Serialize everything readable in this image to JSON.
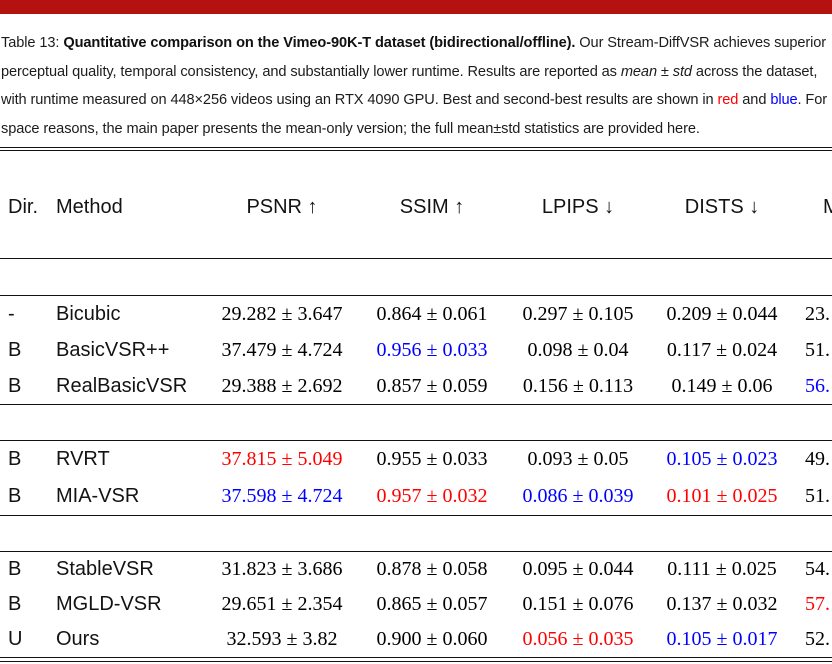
{
  "colors": {
    "accent_bar": "#b31210",
    "best": "#ff0000",
    "second": "#0000ff"
  },
  "caption": {
    "line1": {
      "pre": "Table 13:",
      "bold": "Quantitative comparison on the Vimeo-90K-T dataset (bidirectional/offline).",
      "post": "Our Stream-DiffVSR achieves superior"
    },
    "line2": {
      "pre": "perceptual quality, temporal consistency, and substantially lower runtime. Results are reported as",
      "italic": "mean ± std",
      "post": "across the dataset,"
    },
    "line3": {
      "pre": "with runtime measured on 448×256 videos using an RTX 4090 GPU. Best and second-best results are shown in",
      "red_word": "red",
      "mid": "and",
      "blue_word": "blue",
      "post": ". For"
    },
    "line4": {
      "text": "space reasons, the main paper presents the mean-only version; the full mean±std statistics are provided here."
    }
  },
  "table": {
    "headers": [
      "Dir.",
      "Method",
      "PSNR ↑",
      "SSIM ↑",
      "LPIPS ↓",
      "DISTS ↓",
      "M"
    ],
    "groups": [
      {
        "rows": [
          {
            "dir": "-",
            "method": "Bicubic",
            "values": [
              {
                "v": "29.282 ± 3.647"
              },
              {
                "v": "0.864 ± 0.061"
              },
              {
                "v": "0.297 ± 0.105"
              },
              {
                "v": "0.209 ± 0.044"
              },
              {
                "v": "23."
              }
            ]
          },
          {
            "dir": "B",
            "method": "BasicVSR++",
            "values": [
              {
                "v": "37.479 ± 4.724"
              },
              {
                "v": "0.956 ± 0.033",
                "c": "second"
              },
              {
                "v": "0.098 ± 0.04"
              },
              {
                "v": "0.117 ± 0.024"
              },
              {
                "v": "51."
              }
            ]
          },
          {
            "dir": "B",
            "method": "RealBasicVSR",
            "values": [
              {
                "v": "29.388 ± 2.692"
              },
              {
                "v": "0.857 ± 0.059"
              },
              {
                "v": "0.156 ± 0.113"
              },
              {
                "v": "0.149 ± 0.06"
              },
              {
                "v": "56.",
                "c": "second"
              }
            ]
          }
        ]
      },
      {
        "rows": [
          {
            "dir": "B",
            "method": "RVRT",
            "values": [
              {
                "v": "37.815 ± 5.049",
                "c": "best"
              },
              {
                "v": "0.955 ± 0.033"
              },
              {
                "v": "0.093 ± 0.05"
              },
              {
                "v": "0.105 ± 0.023",
                "c": "second"
              },
              {
                "v": "49."
              }
            ]
          },
          {
            "dir": "B",
            "method": "MIA-VSR",
            "values": [
              {
                "v": "37.598 ± 4.724",
                "c": "second"
              },
              {
                "v": "0.957 ± 0.032",
                "c": "best"
              },
              {
                "v": "0.086 ± 0.039",
                "c": "second"
              },
              {
                "v": "0.101 ± 0.025",
                "c": "best"
              },
              {
                "v": "51."
              }
            ]
          }
        ]
      },
      {
        "rows": [
          {
            "dir": "B",
            "method": "StableVSR",
            "values": [
              {
                "v": "31.823 ± 3.686"
              },
              {
                "v": "0.878 ± 0.058"
              },
              {
                "v": "0.095 ± 0.044"
              },
              {
                "v": "0.111 ± 0.025"
              },
              {
                "v": "54."
              }
            ]
          },
          {
            "dir": "B",
            "method": "MGLD-VSR",
            "values": [
              {
                "v": "29.651 ± 2.354"
              },
              {
                "v": "0.865 ± 0.057"
              },
              {
                "v": "0.151 ± 0.076"
              },
              {
                "v": "0.137 ± 0.032"
              },
              {
                "v": "57.",
                "c": "best"
              }
            ]
          },
          {
            "dir": "U",
            "method": "Ours",
            "values": [
              {
                "v": "32.593 ± 3.82"
              },
              {
                "v": "0.900 ± 0.060"
              },
              {
                "v": "0.056 ± 0.035",
                "c": "best"
              },
              {
                "v": "0.105 ± 0.017",
                "c": "second"
              },
              {
                "v": "52."
              }
            ]
          }
        ]
      }
    ]
  }
}
